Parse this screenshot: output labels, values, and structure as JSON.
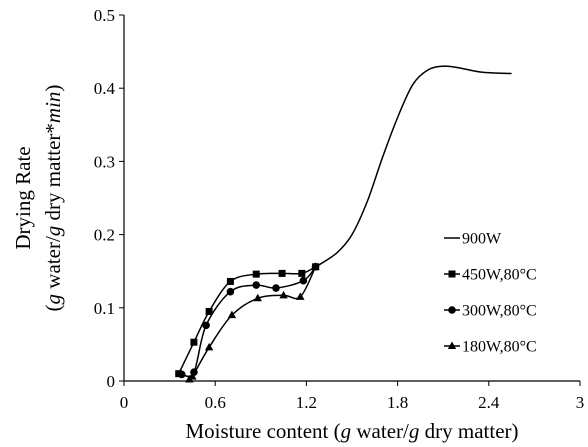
{
  "chart_data": {
    "type": "line",
    "xlabel": "Moisture content (g water/g dry matter)",
    "ylabel_line1": "Drying Rate",
    "ylabel_line2": "(g water/g dry matter*min)",
    "xlim": [
      0,
      3
    ],
    "ylim": [
      0,
      0.5
    ],
    "xticks": [
      0,
      0.6,
      1.2,
      1.8,
      2.4,
      3
    ],
    "xtick_labels": [
      "0",
      "0.6",
      "1.2",
      "1.8",
      "2.4",
      "3"
    ],
    "yticks": [
      0,
      0.1,
      0.2,
      0.3,
      0.4,
      0.5
    ],
    "ytick_labels": [
      "0",
      "0.1",
      "0.2",
      "0.3",
      "0.4",
      "0.5"
    ],
    "grid": false,
    "legend_position": "right",
    "series": [
      {
        "name": "900W",
        "marker": "none",
        "x": [
          1.27,
          1.4,
          1.5,
          1.6,
          1.7,
          1.8,
          1.9,
          2.0,
          2.1,
          2.2,
          2.35,
          2.55
        ],
        "y": [
          0.157,
          0.175,
          0.2,
          0.245,
          0.305,
          0.36,
          0.405,
          0.425,
          0.43,
          0.428,
          0.422,
          0.42
        ]
      },
      {
        "name": "450W,80°C",
        "marker": "square",
        "x": [
          0.36,
          0.46,
          0.56,
          0.7,
          0.87,
          1.04,
          1.17,
          1.26
        ],
        "y": [
          0.01,
          0.053,
          0.095,
          0.136,
          0.146,
          0.147,
          0.147,
          0.156
        ]
      },
      {
        "name": "300W,80°C",
        "marker": "circle",
        "x": [
          0.38,
          0.46,
          0.54,
          0.7,
          0.87,
          1.0,
          1.18,
          1.26
        ],
        "y": [
          0.009,
          0.012,
          0.076,
          0.122,
          0.131,
          0.127,
          0.137,
          0.156
        ]
      },
      {
        "name": "180W,80°C",
        "marker": "triangle",
        "x": [
          0.43,
          0.45,
          0.56,
          0.71,
          0.88,
          1.05,
          1.16,
          1.26
        ],
        "y": [
          0.002,
          0.006,
          0.046,
          0.09,
          0.113,
          0.117,
          0.115,
          0.156
        ]
      }
    ]
  }
}
